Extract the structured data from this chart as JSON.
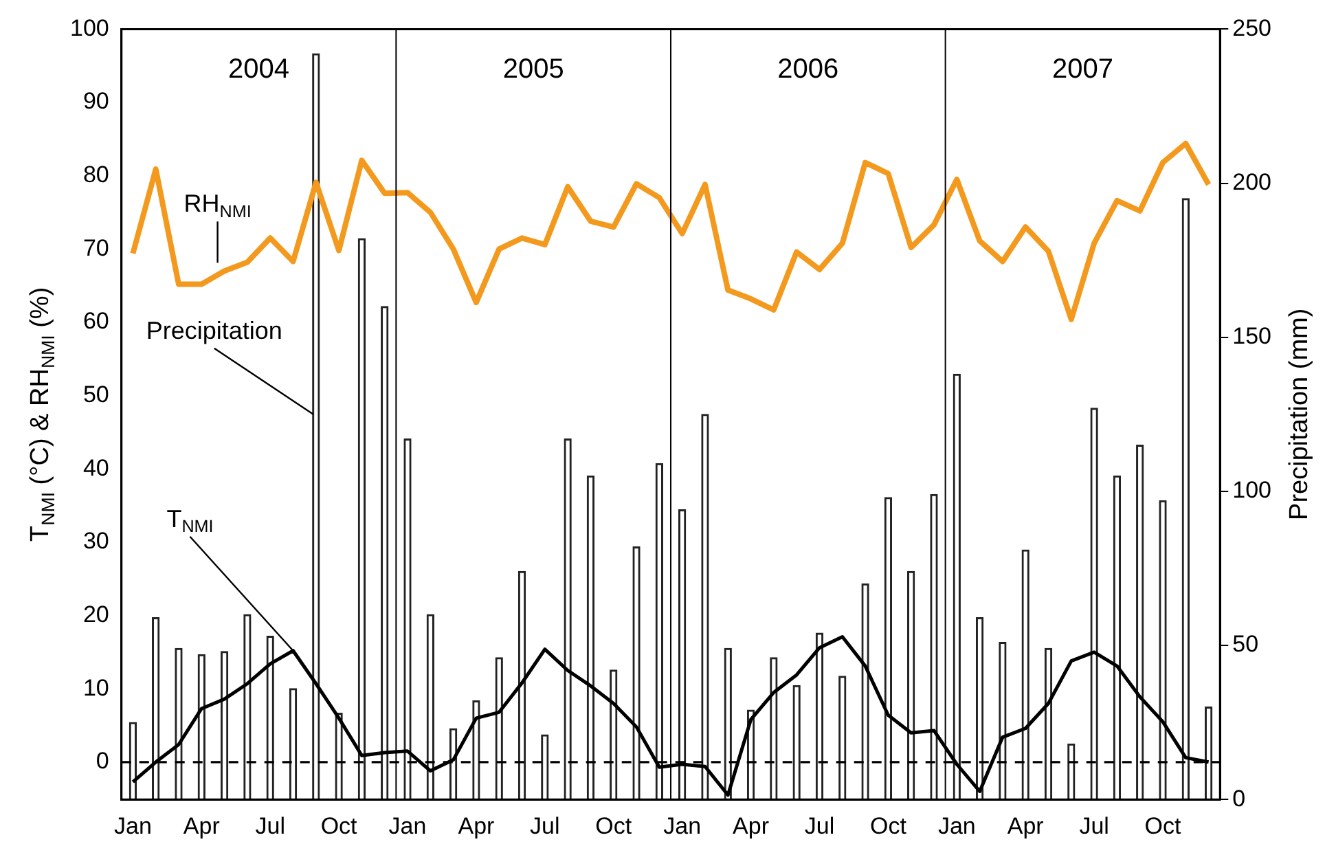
{
  "chart_data": {
    "type": "line",
    "ylabel": "T$_{NMI}$ (°C) & RH$_{NMI}$ (%)",
    "y2label": "Precipitation (mm)",
    "categories": [
      "Jan",
      null,
      null,
      "Apr",
      null,
      null,
      "Jul",
      null,
      null,
      "Oct",
      null,
      null,
      "Jan",
      null,
      null,
      "Apr",
      null,
      null,
      "Jul",
      null,
      null,
      "Oct",
      null,
      null,
      "Jan",
      null,
      null,
      "Apr",
      null,
      null,
      "Jul",
      null,
      null,
      "Oct",
      null,
      null,
      "Jan",
      null,
      null,
      "Apr",
      null,
      null,
      "Jul",
      null,
      null,
      "Oct",
      null,
      null
    ],
    "ylim": [
      -5.1,
      100
    ],
    "yticks": [
      0,
      10,
      20,
      30,
      40,
      50,
      60,
      70,
      80,
      90,
      100
    ],
    "y2lim": [
      0,
      250
    ],
    "y2ticks": [
      0,
      50,
      100,
      150,
      200,
      250
    ],
    "series": [
      {
        "name": "Precipitation",
        "type": "bar",
        "axis": "y2",
        "color": "#222222",
        "values": [
          25,
          59,
          49,
          47,
          48,
          60,
          53,
          36,
          242,
          28,
          182,
          160,
          117,
          60,
          23,
          32,
          46,
          74,
          21,
          117,
          105,
          42,
          82,
          109,
          94,
          125,
          49,
          29,
          46,
          37,
          54,
          40,
          70,
          98,
          74,
          99,
          138,
          59,
          51,
          81,
          49,
          18,
          127,
          105,
          115,
          97,
          195,
          30
        ]
      },
      {
        "name": "T$_{NMI}$",
        "color": "#000000",
        "values": [
          -2.7,
          0,
          2.4,
          7.3,
          8.6,
          10.7,
          13.4,
          15.2,
          10.7,
          6,
          0.9,
          1.3,
          1.5,
          -1.2,
          0.3,
          6,
          6.8,
          10.8,
          15.4,
          12.5,
          10.4,
          8,
          4.8,
          -0.7,
          -0.3,
          -0.6,
          -4.5,
          5.8,
          9.5,
          11.9,
          15.6,
          17.1,
          13.1,
          6.4,
          4,
          4.3,
          -0.3,
          -4,
          3.4,
          4.6,
          8,
          13.8,
          15,
          13.1,
          8.9,
          5.5,
          0.6,
          0
        ]
      },
      {
        "name": "RH$_{NMI}$",
        "color": "#f39a1e",
        "values": [
          69.4,
          80.9,
          65.2,
          65.2,
          67,
          68.2,
          71.5,
          68.3,
          79.1,
          69.8,
          82.1,
          77.6,
          77.7,
          75,
          70,
          62.7,
          70,
          71.5,
          70.6,
          78.5,
          73.8,
          73,
          78.9,
          77,
          72.1,
          78.8,
          64.4,
          63.2,
          61.7,
          69.6,
          67.2,
          70.8,
          81.8,
          80.3,
          70.2,
          73.3,
          79.5,
          71.1,
          68.3,
          73,
          69.7,
          60.4,
          70.8,
          76.6,
          75.2,
          81.8,
          84.4,
          78.8
        ]
      }
    ],
    "ref_lines": [
      {
        "axis": "y",
        "value": 0,
        "line_style": "dashed",
        "color": "#000000"
      }
    ],
    "annotations": [
      "2004",
      "2005",
      "2006",
      "2007"
    ],
    "grid": false,
    "legend": false,
    "marker": "none"
  }
}
